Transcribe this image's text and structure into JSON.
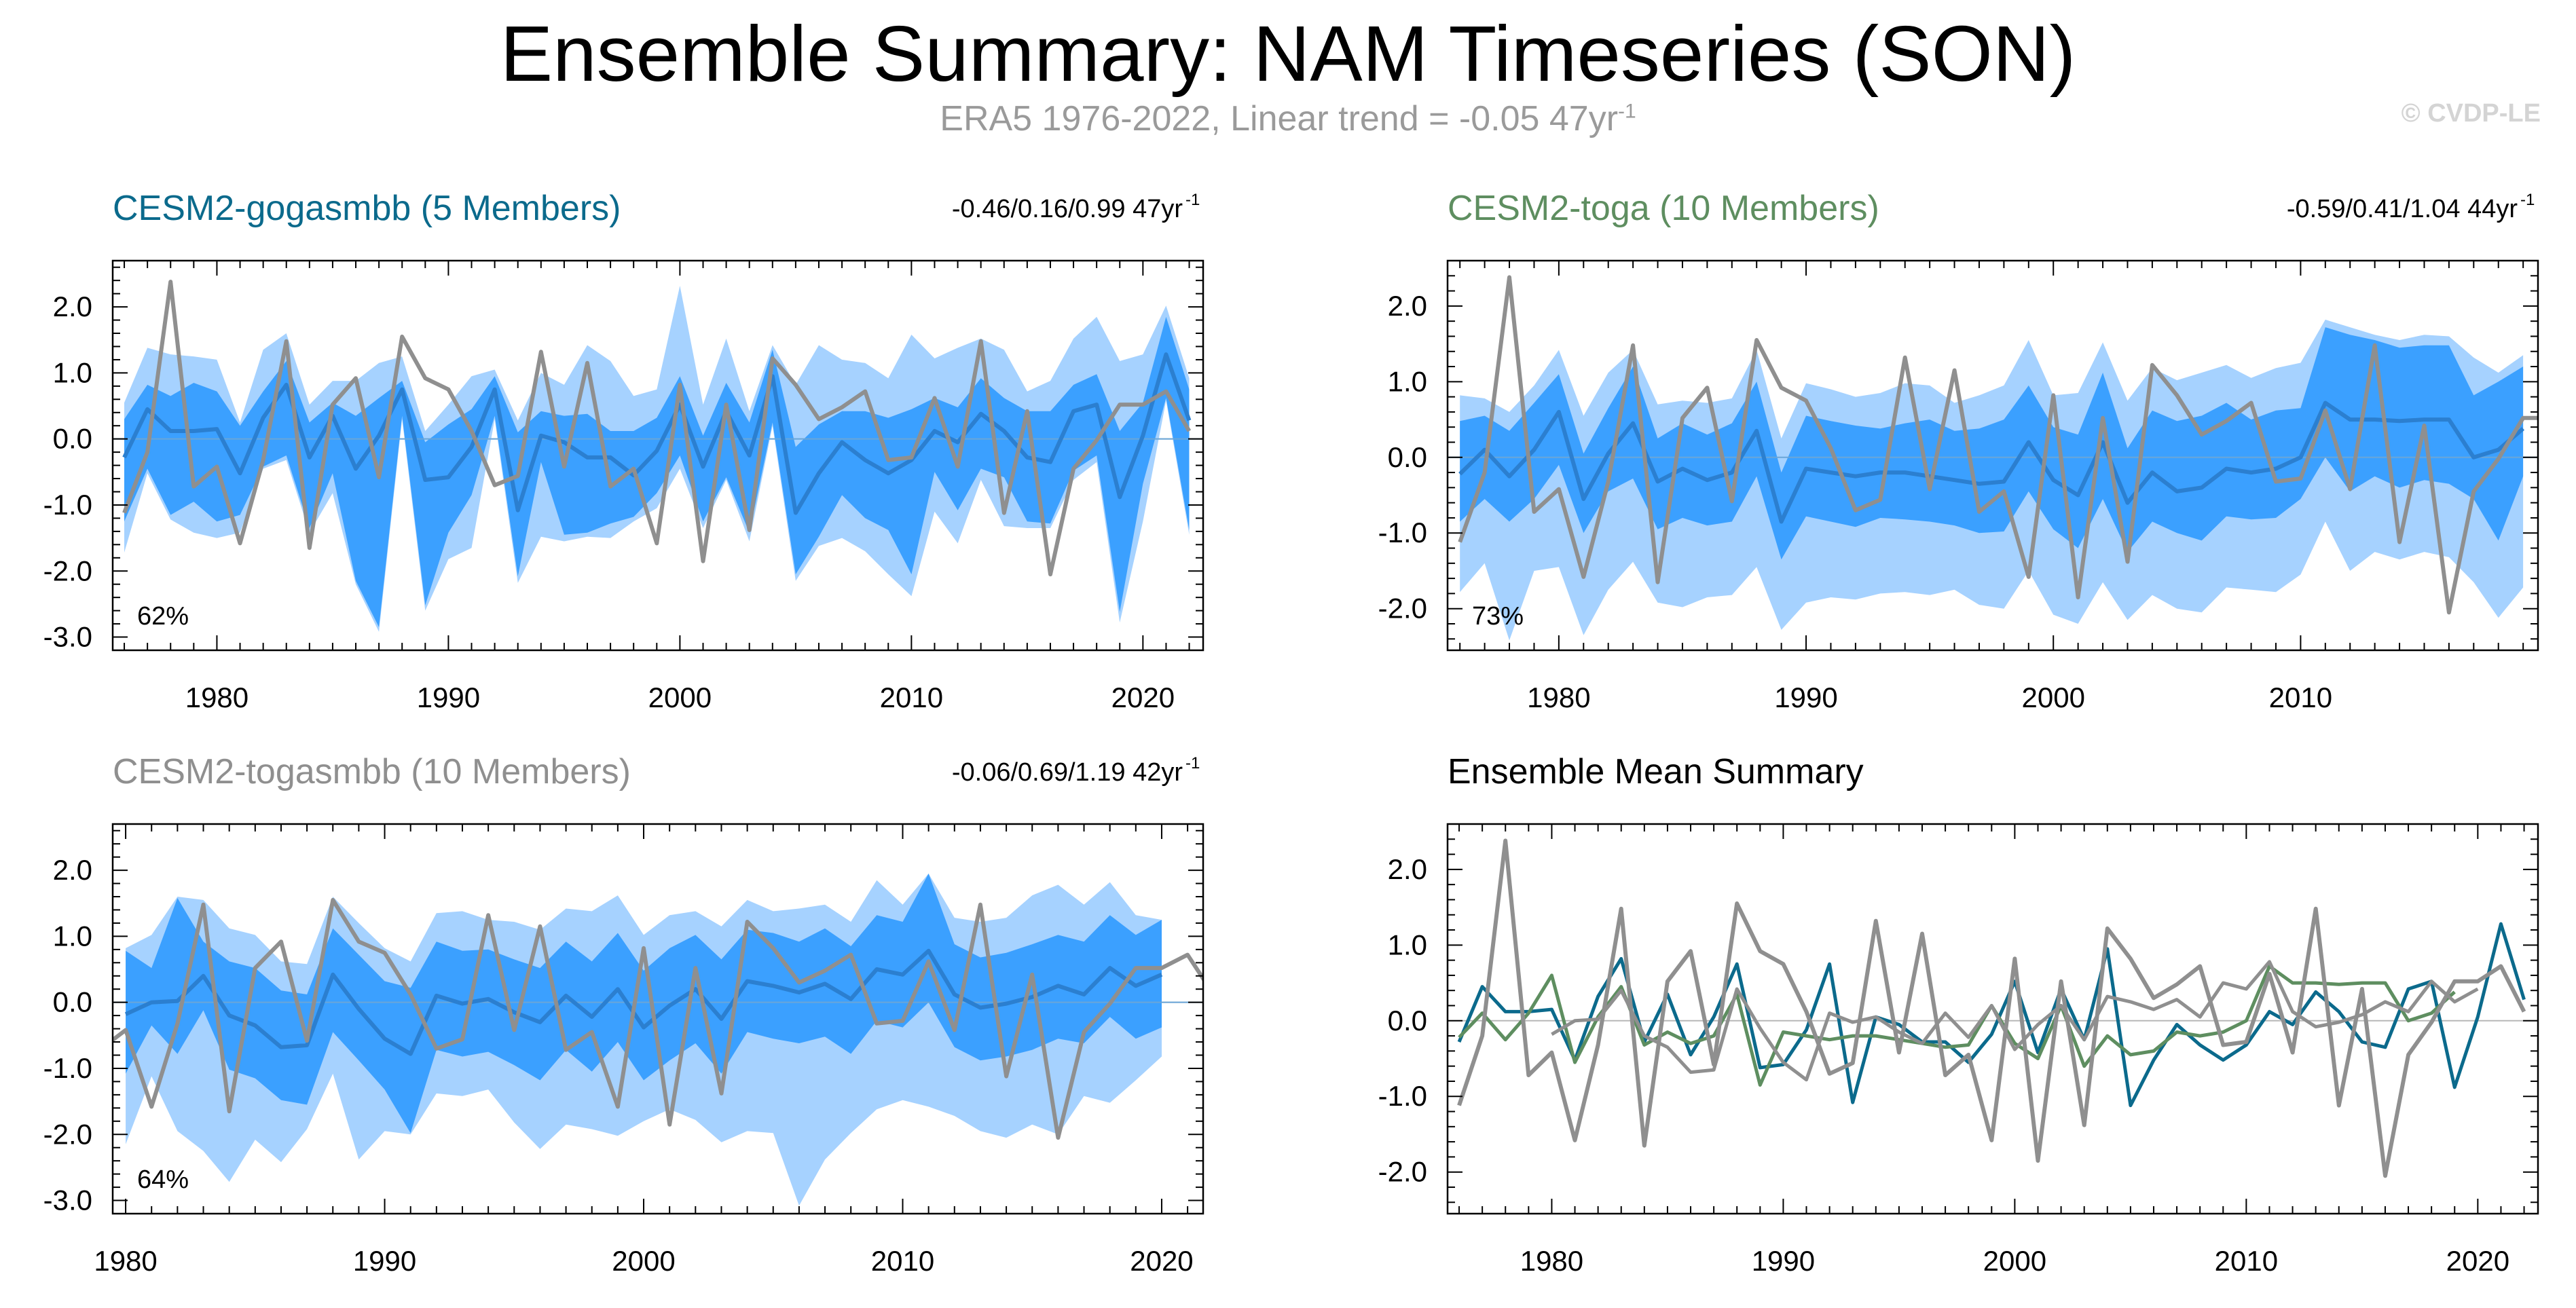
{
  "title": "Ensemble Summary: NAM Timeseries (SON)",
  "subtitle": {
    "text": "ERA5 1976-2022, Linear trend = -0.05 47yr",
    "sup": "-1"
  },
  "credit": "© CVDP-LE",
  "colors": {
    "outer_band": "#a6d2ff",
    "inner_band": "#3ba0ff",
    "ens_mean": "#2b7fd0",
    "obs": "#8f8f8f",
    "gogasmbb": "#0b6a8c",
    "toga": "#5e8e60",
    "togasmbb": "#8f8f8f"
  },
  "obs_years": [
    1976,
    2022
  ],
  "obs_values": [
    -1.12,
    -0.2,
    2.38,
    -0.72,
    -0.42,
    -1.58,
    -0.32,
    1.48,
    -1.65,
    0.52,
    0.92,
    -0.58,
    1.55,
    0.92,
    0.75,
    0.12,
    -0.7,
    -0.56,
    1.32,
    -0.42,
    1.15,
    -0.72,
    -0.45,
    -1.58,
    0.82,
    -1.85,
    0.52,
    -1.38,
    1.22,
    0.82,
    0.3,
    0.48,
    0.72,
    -0.32,
    -0.28,
    0.62,
    -0.42,
    1.48,
    -1.12,
    0.42,
    -2.05,
    -0.45,
    -0.02,
    0.52,
    0.52,
    0.72,
    0.12
  ],
  "chart_data": [
    {
      "type": "area",
      "id": "gogasmbb",
      "title": "CESM2-gogasmbb (5 Members)",
      "stats_text": "-0.46/0.16/0.99 47yr",
      "stats_sup": "-1",
      "percent_label": "62%",
      "years": [
        1976,
        2022
      ],
      "ylim": [
        -3.2,
        2.7
      ],
      "xlim": [
        1975.5,
        2022.6
      ],
      "yticks": [
        2.0,
        1.0,
        0.0,
        -1.0,
        -2.0,
        -3.0
      ],
      "ytick_labels": [
        "2.0",
        "1.0",
        "0.0",
        "-1.0",
        "-2.0",
        "-3.0"
      ],
      "xticks": [
        1980,
        1990,
        2000,
        2010,
        2020
      ],
      "xtick_labels": [
        "1980",
        "1990",
        "2000",
        "2010",
        "2020"
      ],
      "ens_mean": [
        -0.28,
        0.45,
        0.12,
        0.12,
        0.15,
        -0.52,
        0.32,
        0.82,
        -0.28,
        0.35,
        -0.45,
        0.05,
        0.75,
        -0.62,
        -0.58,
        -0.12,
        0.75,
        -1.08,
        0.05,
        -0.05,
        -0.28,
        -0.28,
        -0.55,
        -0.18,
        0.52,
        -0.42,
        0.42,
        -0.25,
        0.95,
        -1.12,
        -0.52,
        -0.05,
        -0.32,
        -0.52,
        -0.32,
        0.12,
        -0.05,
        0.38,
        0.12,
        -0.28,
        -0.35,
        0.42,
        0.52,
        -0.88,
        0.05,
        1.28,
        0.28
      ],
      "inner_upper": [
        0.3,
        0.82,
        0.65,
        0.85,
        0.72,
        0.2,
        0.72,
        1.18,
        0.25,
        0.55,
        0.35,
        0.62,
        0.88,
        -0.05,
        0.22,
        0.45,
        0.95,
        0.1,
        0.42,
        0.35,
        0.38,
        0.12,
        0.12,
        0.32,
        0.95,
        0.05,
        0.85,
        0.25,
        1.35,
        -0.12,
        0.22,
        0.42,
        0.42,
        0.32,
        0.45,
        0.62,
        0.48,
        0.92,
        0.62,
        0.42,
        0.42,
        0.82,
        0.98,
        0.12,
        0.55,
        1.85,
        0.75
      ],
      "inner_lower": [
        -1.25,
        -0.45,
        -1.15,
        -0.95,
        -1.25,
        -1.15,
        -0.42,
        -0.25,
        -1.35,
        -0.52,
        -2.15,
        -2.85,
        0.35,
        -2.52,
        -1.42,
        -0.85,
        0.35,
        -2.08,
        -0.35,
        -1.45,
        -1.42,
        -1.28,
        -1.18,
        -0.82,
        -0.25,
        -1.25,
        -0.58,
        -1.42,
        0.25,
        -2.05,
        -1.48,
        -0.85,
        -1.2,
        -1.38,
        -2.05,
        -0.5,
        -1.08,
        -0.45,
        -0.58,
        -1.25,
        -1.28,
        -0.48,
        -0.25,
        -2.62,
        -0.68,
        0.62,
        -1.38
      ],
      "outer_upper": [
        0.55,
        1.38,
        1.28,
        1.25,
        1.2,
        0.25,
        1.35,
        1.6,
        0.52,
        0.88,
        0.88,
        1.15,
        1.25,
        0.12,
        0.52,
        0.95,
        1.05,
        0.28,
        1.0,
        0.82,
        1.42,
        1.18,
        0.65,
        0.75,
        2.32,
        0.52,
        1.52,
        0.42,
        1.42,
        0.82,
        1.42,
        1.2,
        1.15,
        0.92,
        1.58,
        1.22,
        1.38,
        1.52,
        1.35,
        0.72,
        0.88,
        1.52,
        1.85,
        1.18,
        1.28,
        2.02,
        0.92
      ],
      "outer_lower": [
        -1.72,
        -0.52,
        -1.22,
        -1.42,
        -1.5,
        -1.42,
        -0.45,
        -0.32,
        -1.42,
        -0.82,
        -2.2,
        -2.92,
        0.3,
        -2.6,
        -1.82,
        -1.65,
        0.3,
        -2.18,
        -1.48,
        -1.55,
        -1.48,
        -1.5,
        -1.25,
        -1.05,
        -0.45,
        -1.35,
        -0.62,
        -1.55,
        0.2,
        -2.15,
        -1.62,
        -1.5,
        -1.7,
        -2.05,
        -2.38,
        -1.1,
        -1.58,
        -0.62,
        -1.32,
        -1.35,
        -1.35,
        -0.62,
        -0.35,
        -2.78,
        -1.25,
        0.58,
        -1.45
      ]
    },
    {
      "type": "area",
      "id": "toga",
      "title": "CESM2-toga (10 Members)",
      "stats_text": "-0.59/0.41/1.04 44yr",
      "stats_sup": "-1",
      "percent_label": "73%",
      "years": [
        1976,
        2019
      ],
      "ylim": [
        -2.55,
        2.6
      ],
      "xlim": [
        1975.5,
        2019.6
      ],
      "yticks": [
        2.0,
        1.0,
        0.0,
        -1.0,
        -2.0
      ],
      "ytick_labels": [
        "2.0",
        "1.0",
        "0.0",
        "-1.0",
        "-2.0"
      ],
      "xticks": [
        1980,
        1990,
        2000,
        2010
      ],
      "xtick_labels": [
        "1980",
        "1990",
        "2000",
        "2010"
      ],
      "ens_mean": [
        -0.22,
        0.1,
        -0.25,
        0.1,
        0.6,
        -0.55,
        0.05,
        0.45,
        -0.32,
        -0.15,
        -0.3,
        -0.2,
        0.35,
        -0.85,
        -0.15,
        -0.2,
        -0.25,
        -0.2,
        -0.2,
        -0.25,
        -0.3,
        -0.35,
        -0.32,
        0.2,
        -0.3,
        -0.5,
        0.2,
        -0.6,
        -0.2,
        -0.45,
        -0.4,
        -0.15,
        -0.2,
        -0.15,
        0.0,
        0.72,
        0.5,
        0.5,
        0.48,
        0.5,
        0.5,
        0.0,
        0.1,
        0.38
      ],
      "inner_upper": [
        0.48,
        0.55,
        0.35,
        0.72,
        1.1,
        0.05,
        0.65,
        1.2,
        0.25,
        0.45,
        0.3,
        0.45,
        1.0,
        -0.2,
        0.55,
        0.48,
        0.42,
        0.38,
        0.45,
        0.5,
        0.35,
        0.38,
        0.5,
        0.95,
        0.4,
        0.3,
        1.12,
        0.12,
        0.62,
        0.48,
        0.55,
        0.72,
        0.5,
        0.62,
        0.65,
        1.72,
        1.62,
        1.55,
        1.45,
        1.48,
        1.48,
        0.82,
        1.0,
        1.2
      ],
      "inner_lower": [
        -0.85,
        -0.55,
        -0.85,
        -0.55,
        -0.1,
        -1.0,
        -0.45,
        -0.28,
        -0.95,
        -0.8,
        -0.9,
        -0.85,
        -0.25,
        -1.35,
        -0.78,
        -0.85,
        -0.92,
        -0.8,
        -0.82,
        -0.85,
        -0.9,
        -1.0,
        -0.98,
        -0.45,
        -0.95,
        -1.2,
        -0.55,
        -1.25,
        -0.85,
        -1.0,
        -1.1,
        -0.78,
        -0.82,
        -0.8,
        -0.55,
        0.0,
        -0.45,
        -0.25,
        -0.4,
        -0.3,
        -0.35,
        -0.55,
        -1.1,
        -0.25
      ],
      "outer_upper": [
        0.82,
        0.78,
        0.6,
        0.95,
        1.42,
        0.55,
        1.12,
        1.42,
        0.7,
        0.75,
        0.72,
        0.78,
        1.42,
        0.25,
        0.98,
        0.9,
        0.8,
        0.85,
        0.98,
        0.95,
        0.72,
        0.82,
        0.95,
        1.55,
        0.82,
        0.85,
        1.52,
        0.75,
        1.18,
        1.02,
        1.12,
        1.22,
        1.05,
        1.18,
        1.25,
        1.82,
        1.72,
        1.62,
        1.55,
        1.62,
        1.6,
        1.32,
        1.12,
        1.35
      ],
      "outer_lower": [
        -1.78,
        -1.4,
        -2.42,
        -1.5,
        -1.45,
        -2.35,
        -1.75,
        -1.38,
        -1.92,
        -1.98,
        -1.85,
        -1.82,
        -1.45,
        -2.28,
        -1.92,
        -1.85,
        -1.88,
        -1.8,
        -1.78,
        -1.82,
        -1.75,
        -1.95,
        -2.0,
        -1.5,
        -2.08,
        -2.2,
        -1.65,
        -2.15,
        -1.82,
        -2.0,
        -2.05,
        -1.72,
        -1.75,
        -1.78,
        -1.55,
        -0.85,
        -1.5,
        -1.25,
        -1.35,
        -1.25,
        -1.32,
        -1.65,
        -2.12,
        -1.72
      ]
    },
    {
      "type": "area",
      "id": "togasmbb",
      "title": "CESM2-togasmbb (10 Members)",
      "stats_text": "-0.06/0.69/1.19 42yr",
      "stats_sup": "-1",
      "percent_label": "64%",
      "years": [
        1980,
        2021
      ],
      "ylim": [
        -3.2,
        2.7
      ],
      "xlim": [
        1979.5,
        2021.6
      ],
      "yticks": [
        2.0,
        1.0,
        0.0,
        -1.0,
        -2.0,
        -3.0
      ],
      "ytick_labels": [
        "2.0",
        "1.0",
        "0.0",
        "-1.0",
        "-2.0",
        "-3.0"
      ],
      "xticks": [
        1980,
        1990,
        2000,
        2010,
        2020
      ],
      "xtick_labels": [
        "1980",
        "1990",
        "2000",
        "2010",
        "2020"
      ],
      "ens_mean": [
        -0.18,
        0.0,
        0.02,
        0.4,
        -0.2,
        -0.35,
        -0.68,
        -0.65,
        0.42,
        -0.1,
        -0.55,
        -0.78,
        0.1,
        -0.02,
        0.05,
        -0.15,
        -0.3,
        0.1,
        -0.22,
        0.2,
        -0.38,
        -0.05,
        0.2,
        -0.25,
        0.32,
        0.25,
        0.15,
        0.28,
        0.05,
        0.5,
        0.42,
        0.78,
        0.12,
        -0.08,
        -0.02,
        0.08,
        0.25,
        0.12,
        0.52,
        0.25,
        0.42
      ],
      "inner_upper": [
        0.78,
        0.52,
        1.58,
        0.92,
        0.62,
        0.52,
        0.18,
        0.12,
        1.12,
        0.72,
        0.32,
        0.22,
        0.92,
        0.78,
        0.8,
        0.65,
        0.52,
        0.92,
        0.62,
        1.05,
        0.48,
        0.82,
        1.02,
        0.65,
        1.1,
        1.05,
        0.92,
        1.12,
        0.85,
        1.32,
        1.22,
        1.95,
        0.88,
        0.68,
        0.75,
        0.88,
        1.02,
        0.92,
        1.32,
        1.02,
        1.25
      ],
      "inner_lower": [
        -1.08,
        -0.35,
        -0.78,
        -0.12,
        -1.02,
        -1.15,
        -1.48,
        -1.55,
        -0.45,
        -0.88,
        -1.32,
        -1.98,
        -0.72,
        -0.82,
        -0.75,
        -0.95,
        -1.18,
        -0.72,
        -1.05,
        -0.6,
        -1.18,
        -0.88,
        -0.62,
        -1.08,
        -0.45,
        -0.55,
        -0.62,
        -0.52,
        -0.78,
        -0.28,
        -0.38,
        0.0,
        -0.68,
        -0.88,
        -0.82,
        -0.72,
        -0.55,
        -0.62,
        -0.22,
        -0.55,
        -0.38
      ],
      "outer_upper": [
        0.82,
        1.02,
        1.6,
        1.55,
        1.12,
        1.02,
        0.62,
        0.58,
        1.6,
        1.2,
        0.82,
        0.62,
        1.35,
        1.38,
        1.25,
        1.22,
        1.1,
        1.42,
        1.38,
        1.62,
        1.02,
        1.32,
        1.38,
        1.15,
        1.55,
        1.38,
        1.42,
        1.48,
        1.22,
        1.85,
        1.48,
        1.95,
        1.28,
        1.22,
        1.28,
        1.62,
        1.78,
        1.48,
        1.82,
        1.32,
        1.25
      ],
      "outer_lower": [
        -2.15,
        -1.12,
        -1.95,
        -2.25,
        -2.72,
        -2.08,
        -2.42,
        -1.92,
        -1.08,
        -2.38,
        -1.95,
        -2.0,
        -1.38,
        -1.42,
        -1.32,
        -1.82,
        -2.22,
        -1.85,
        -1.92,
        -2.02,
        -1.8,
        -1.62,
        -1.78,
        -2.12,
        -1.95,
        -1.98,
        -3.08,
        -2.38,
        -1.98,
        -1.62,
        -1.48,
        -1.58,
        -1.72,
        -1.95,
        -2.05,
        -1.85,
        -2.0,
        -1.42,
        -1.52,
        -1.18,
        -0.82
      ]
    },
    {
      "type": "line",
      "id": "summary",
      "title": "Ensemble Mean Summary",
      "ylim": [
        -2.55,
        2.6
      ],
      "xlim": [
        1975.5,
        2022.6
      ],
      "yticks": [
        2.0,
        1.0,
        0.0,
        -1.0,
        -2.0
      ],
      "ytick_labels": [
        "2.0",
        "1.0",
        "0.0",
        "-1.0",
        "-2.0"
      ],
      "xticks": [
        1980,
        1990,
        2000,
        2010,
        2020
      ],
      "xtick_labels": [
        "1980",
        "1990",
        "2000",
        "2010",
        "2020"
      ],
      "series": [
        {
          "name": "CESM2-gogasmbb",
          "color_key": "gogasmbb",
          "start": 1976
        },
        {
          "name": "CESM2-toga",
          "color_key": "toga",
          "start": 1976
        },
        {
          "name": "CESM2-togasmbb",
          "color_key": "togasmbb",
          "start": 1980
        }
      ]
    }
  ]
}
